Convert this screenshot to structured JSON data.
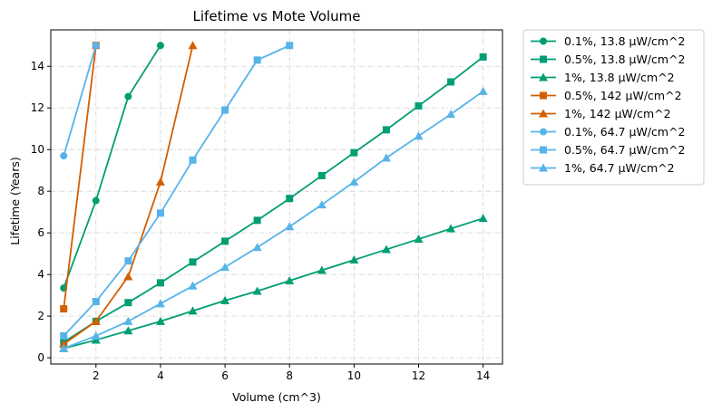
{
  "chart_data": {
    "type": "line",
    "title": "Lifetime vs Mote Volume",
    "xlabel": "Volume (cm^3)",
    "ylabel": "Lifetime (Years)",
    "xlim": [
      0.6,
      14.6
    ],
    "ylim": [
      -0.3,
      15.75
    ],
    "xticks": [
      2,
      4,
      6,
      8,
      10,
      12,
      14
    ],
    "yticks": [
      0,
      2,
      4,
      6,
      8,
      10,
      12,
      14
    ],
    "grid": true,
    "grid_style": "dash-dot",
    "legend_position": "outside-right-top",
    "series": [
      {
        "name": "0.1%, 13.8 μW/cm^2",
        "color": "#009E73",
        "marker": "circle",
        "x": [
          1,
          2,
          3,
          4
        ],
        "y": [
          3.35,
          7.55,
          12.55,
          15.0
        ]
      },
      {
        "name": "0.5%, 13.8 μW/cm^2",
        "color": "#009E73",
        "marker": "square",
        "x": [
          1,
          2,
          3,
          4,
          5,
          6,
          7,
          8,
          9,
          10,
          11,
          12,
          13,
          14
        ],
        "y": [
          0.75,
          1.75,
          2.65,
          3.6,
          4.6,
          5.6,
          6.6,
          7.65,
          8.75,
          9.85,
          10.95,
          12.1,
          13.25,
          14.45
        ]
      },
      {
        "name": "1%, 13.8 μW/cm^2",
        "color": "#009E73",
        "marker": "triangle",
        "x": [
          1,
          2,
          3,
          4,
          5,
          6,
          7,
          8,
          9,
          10,
          11,
          12,
          13,
          14
        ],
        "y": [
          0.45,
          0.85,
          1.3,
          1.75,
          2.25,
          2.75,
          3.2,
          3.7,
          4.2,
          4.7,
          5.2,
          5.7,
          6.2,
          6.7
        ]
      },
      {
        "name": "0.5%, 142 μW/cm^2",
        "color": "#D55E00",
        "marker": "square",
        "x": [
          1,
          2
        ],
        "y": [
          2.35,
          15.0
        ]
      },
      {
        "name": "1%, 142 μW/cm^2",
        "color": "#D55E00",
        "marker": "triangle",
        "x": [
          1,
          2,
          3,
          4,
          5
        ],
        "y": [
          0.65,
          1.75,
          3.9,
          8.45,
          15.0
        ]
      },
      {
        "name": "0.1%, 64.7 μW/cm^2",
        "color": "#56B4E9",
        "marker": "circle",
        "x": [
          1,
          2
        ],
        "y": [
          9.7,
          15.0
        ]
      },
      {
        "name": "0.5%, 64.7 μW/cm^2",
        "color": "#56B4E9",
        "marker": "square",
        "x": [
          1,
          2,
          3,
          4,
          5,
          6,
          7,
          8
        ],
        "y": [
          1.05,
          2.7,
          4.65,
          6.95,
          9.5,
          11.9,
          14.3,
          15.0
        ]
      },
      {
        "name": "1%, 64.7 μW/cm^2",
        "color": "#56B4E9",
        "marker": "triangle",
        "x": [
          1,
          2,
          3,
          4,
          5,
          6,
          7,
          8,
          9,
          10,
          11,
          12,
          13,
          14
        ],
        "y": [
          0.45,
          1.05,
          1.75,
          2.6,
          3.45,
          4.35,
          5.3,
          6.3,
          7.35,
          8.45,
          9.6,
          10.65,
          11.7,
          12.8
        ]
      }
    ]
  }
}
